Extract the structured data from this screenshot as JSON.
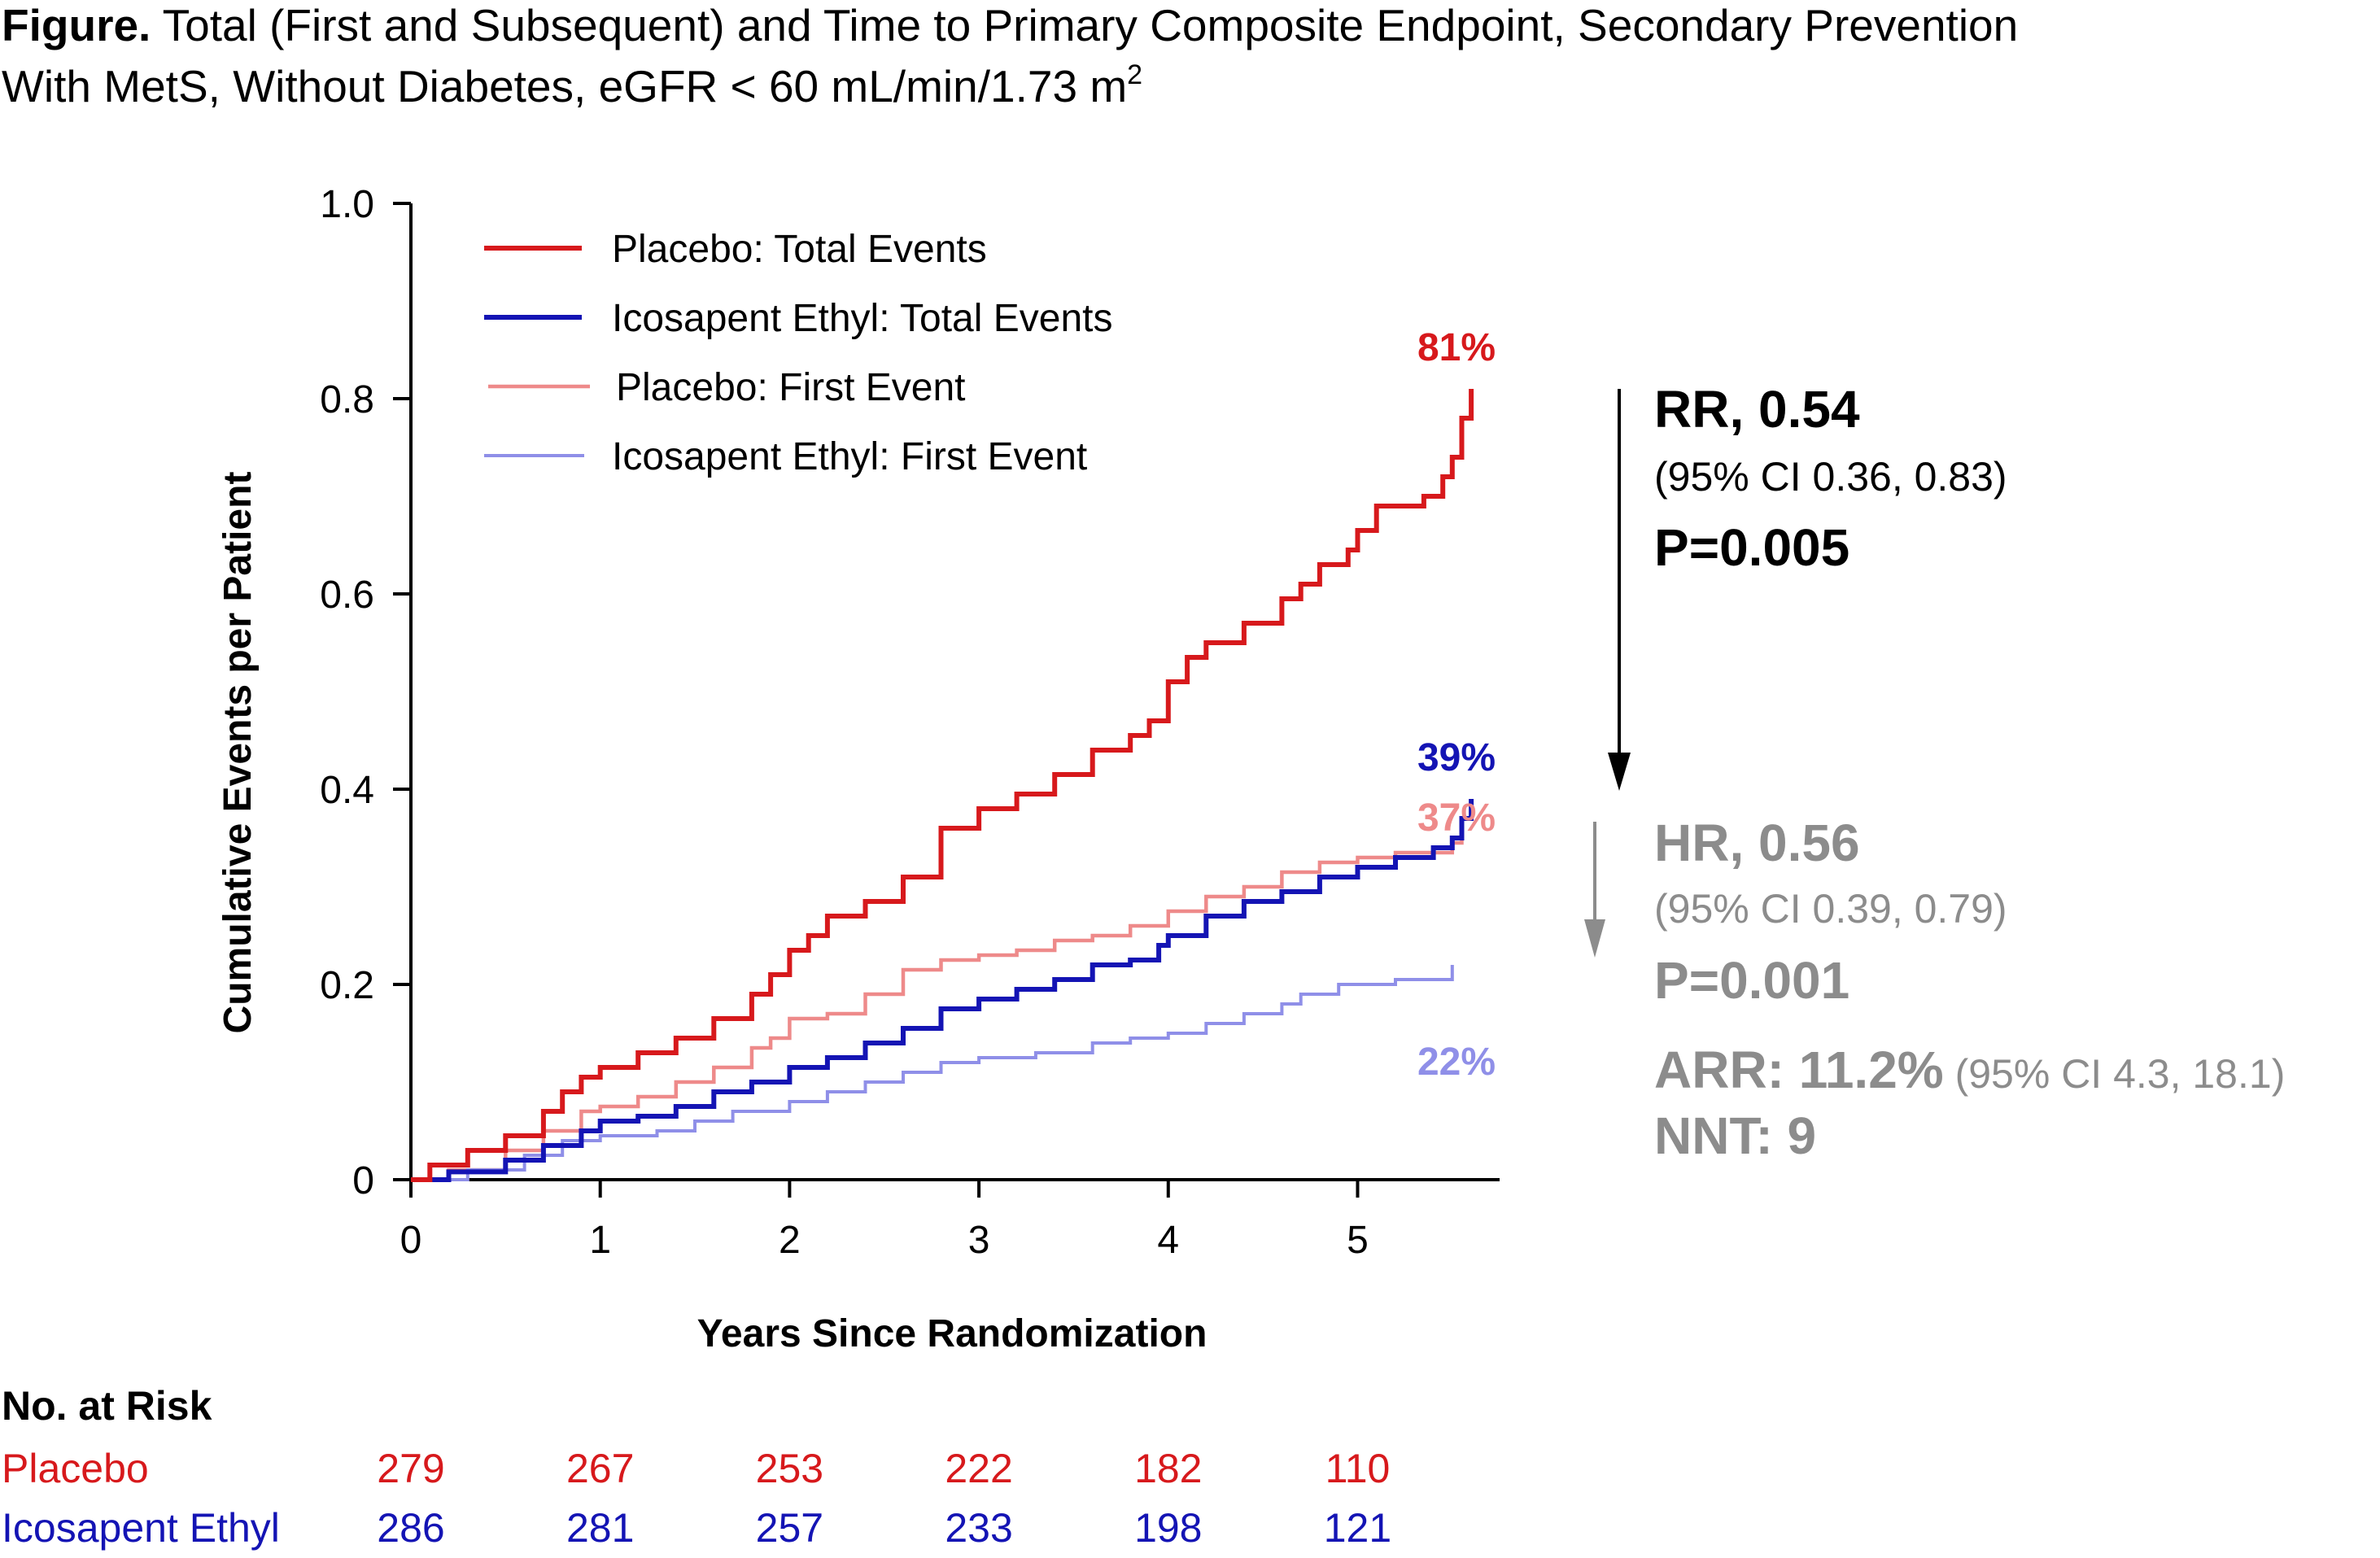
{
  "figure": {
    "caption_bold": "Figure.",
    "caption_line1": " Total (First and Subsequent) and Time to Primary Composite Endpoint, Secondary Prevention",
    "caption_line2": "With MetS, Without Diabetes, eGFR < 60 mL/min/1.73 m",
    "caption_sup": "2"
  },
  "colors": {
    "placebo_total": "#d7191c",
    "ie_total": "#1414b4",
    "placebo_first": "#ee8a8a",
    "ie_first": "#8f8fe8",
    "rr_text": "#000000",
    "hr_text": "#8c8c8c"
  },
  "chart_data": {
    "type": "line",
    "ylabel": "Cumulative Events per Patient",
    "xlabel": "Years Since Randomization",
    "xlim": [
      0,
      5.75
    ],
    "ylim": [
      0,
      1.0
    ],
    "x_ticks": [
      "0",
      "1",
      "2",
      "3",
      "4",
      "5"
    ],
    "y_ticks": [
      "0",
      "0.2",
      "0.4",
      "0.6",
      "0.8",
      "1.0"
    ],
    "legend_position": "top-left",
    "series": [
      {
        "name": "Placebo: Total Events",
        "color_key": "placebo_total",
        "end_label": "81%",
        "points": [
          [
            0,
            0
          ],
          [
            0.1,
            0.015
          ],
          [
            0.3,
            0.03
          ],
          [
            0.5,
            0.045
          ],
          [
            0.7,
            0.07
          ],
          [
            0.8,
            0.09
          ],
          [
            0.9,
            0.105
          ],
          [
            1.0,
            0.115
          ],
          [
            1.2,
            0.13
          ],
          [
            1.4,
            0.145
          ],
          [
            1.6,
            0.165
          ],
          [
            1.8,
            0.19
          ],
          [
            1.9,
            0.21
          ],
          [
            2.0,
            0.235
          ],
          [
            2.1,
            0.25
          ],
          [
            2.2,
            0.27
          ],
          [
            2.4,
            0.285
          ],
          [
            2.6,
            0.31
          ],
          [
            2.8,
            0.36
          ],
          [
            3.0,
            0.38
          ],
          [
            3.2,
            0.395
          ],
          [
            3.4,
            0.415
          ],
          [
            3.6,
            0.44
          ],
          [
            3.8,
            0.455
          ],
          [
            3.9,
            0.47
          ],
          [
            4.0,
            0.51
          ],
          [
            4.1,
            0.535
          ],
          [
            4.2,
            0.55
          ],
          [
            4.4,
            0.57
          ],
          [
            4.6,
            0.595
          ],
          [
            4.7,
            0.61
          ],
          [
            4.8,
            0.63
          ],
          [
            4.95,
            0.645
          ],
          [
            5.0,
            0.665
          ],
          [
            5.1,
            0.69
          ],
          [
            5.35,
            0.7
          ],
          [
            5.45,
            0.72
          ],
          [
            5.5,
            0.74
          ],
          [
            5.55,
            0.78
          ],
          [
            5.6,
            0.81
          ]
        ]
      },
      {
        "name": "Icosapent Ethyl: Total Events",
        "color_key": "ie_total",
        "end_label": "39%",
        "points": [
          [
            0,
            0
          ],
          [
            0.2,
            0.008
          ],
          [
            0.5,
            0.02
          ],
          [
            0.7,
            0.035
          ],
          [
            0.9,
            0.05
          ],
          [
            1.0,
            0.06
          ],
          [
            1.2,
            0.065
          ],
          [
            1.4,
            0.075
          ],
          [
            1.6,
            0.09
          ],
          [
            1.8,
            0.1
          ],
          [
            2.0,
            0.115
          ],
          [
            2.2,
            0.125
          ],
          [
            2.4,
            0.14
          ],
          [
            2.6,
            0.155
          ],
          [
            2.8,
            0.175
          ],
          [
            3.0,
            0.185
          ],
          [
            3.2,
            0.195
          ],
          [
            3.4,
            0.205
          ],
          [
            3.6,
            0.22
          ],
          [
            3.8,
            0.225
          ],
          [
            3.95,
            0.24
          ],
          [
            4.0,
            0.25
          ],
          [
            4.2,
            0.27
          ],
          [
            4.4,
            0.285
          ],
          [
            4.6,
            0.295
          ],
          [
            4.8,
            0.31
          ],
          [
            5.0,
            0.32
          ],
          [
            5.2,
            0.33
          ],
          [
            5.4,
            0.34
          ],
          [
            5.5,
            0.35
          ],
          [
            5.55,
            0.37
          ],
          [
            5.6,
            0.39
          ]
        ]
      },
      {
        "name": "Placebo: First Event",
        "color_key": "placebo_first",
        "end_label": "37%",
        "points": [
          [
            0,
            0
          ],
          [
            0.2,
            0.01
          ],
          [
            0.5,
            0.03
          ],
          [
            0.7,
            0.05
          ],
          [
            0.9,
            0.07
          ],
          [
            1.0,
            0.075
          ],
          [
            1.2,
            0.085
          ],
          [
            1.4,
            0.1
          ],
          [
            1.6,
            0.115
          ],
          [
            1.8,
            0.135
          ],
          [
            1.9,
            0.145
          ],
          [
            2.0,
            0.165
          ],
          [
            2.2,
            0.17
          ],
          [
            2.4,
            0.19
          ],
          [
            2.6,
            0.215
          ],
          [
            2.8,
            0.225
          ],
          [
            3.0,
            0.23
          ],
          [
            3.2,
            0.235
          ],
          [
            3.4,
            0.245
          ],
          [
            3.6,
            0.25
          ],
          [
            3.8,
            0.26
          ],
          [
            4.0,
            0.275
          ],
          [
            4.2,
            0.29
          ],
          [
            4.4,
            0.3
          ],
          [
            4.6,
            0.315
          ],
          [
            4.8,
            0.325
          ],
          [
            5.0,
            0.33
          ],
          [
            5.2,
            0.335
          ],
          [
            5.5,
            0.345
          ],
          [
            5.55,
            0.37
          ]
        ]
      },
      {
        "name": "Icosapent Ethyl: First Event",
        "color_key": "ie_first",
        "end_label": "22%",
        "points": [
          [
            0,
            0
          ],
          [
            0.3,
            0.01
          ],
          [
            0.6,
            0.025
          ],
          [
            0.8,
            0.04
          ],
          [
            1.0,
            0.045
          ],
          [
            1.3,
            0.05
          ],
          [
            1.5,
            0.06
          ],
          [
            1.7,
            0.07
          ],
          [
            2.0,
            0.08
          ],
          [
            2.2,
            0.09
          ],
          [
            2.4,
            0.1
          ],
          [
            2.6,
            0.11
          ],
          [
            2.8,
            0.12
          ],
          [
            3.0,
            0.125
          ],
          [
            3.3,
            0.13
          ],
          [
            3.6,
            0.14
          ],
          [
            3.8,
            0.145
          ],
          [
            4.0,
            0.15
          ],
          [
            4.2,
            0.16
          ],
          [
            4.4,
            0.17
          ],
          [
            4.6,
            0.18
          ],
          [
            4.7,
            0.19
          ],
          [
            4.9,
            0.2
          ],
          [
            5.2,
            0.205
          ],
          [
            5.5,
            0.21
          ],
          [
            5.5,
            0.22
          ]
        ]
      }
    ]
  },
  "stats_total": {
    "rr": "RR, 0.54",
    "ci": "(95% CI 0.36, 0.83)",
    "p": "P=0.005"
  },
  "stats_first": {
    "hr": "HR, 0.56",
    "ci": "(95% CI 0.39, 0.79)",
    "p": "P=0.001",
    "arr_label": "ARR: 11.2%",
    "arr_ci": " (95% CI 4.3, 18.1)",
    "nnt": "NNT: 9"
  },
  "risk_table": {
    "heading": "No. at Risk",
    "rows": [
      {
        "label": "Placebo",
        "color_key": "placebo_total",
        "values": [
          "279",
          "267",
          "253",
          "222",
          "182",
          "110"
        ]
      },
      {
        "label": "Icosapent Ethyl",
        "color_key": "ie_total",
        "values": [
          "286",
          "281",
          "257",
          "233",
          "198",
          "121"
        ]
      }
    ]
  }
}
